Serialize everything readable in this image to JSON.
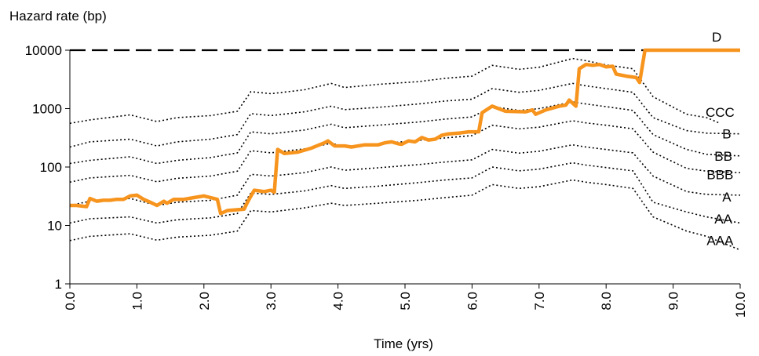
{
  "chart_data": {
    "type": "line",
    "title": "",
    "ylabel": "Hazard rate (bp)",
    "xlabel": "Time (yrs)",
    "yscale": "log",
    "ylim": [
      1,
      10000
    ],
    "xlim": [
      0,
      10
    ],
    "yticks": [
      {
        "value": 1,
        "label": "1"
      },
      {
        "value": 10,
        "label": "10"
      },
      {
        "value": 100,
        "label": "100"
      },
      {
        "value": 1000,
        "label": "1000"
      },
      {
        "value": 10000,
        "label": "10000"
      }
    ],
    "xticks": [
      {
        "value": 0,
        "label": "0.0"
      },
      {
        "value": 1,
        "label": "1.0"
      },
      {
        "value": 2,
        "label": "2.0"
      },
      {
        "value": 3,
        "label": "3.0"
      },
      {
        "value": 4,
        "label": "4.0"
      },
      {
        "value": 5,
        "label": "5.0"
      },
      {
        "value": 6,
        "label": "6.0"
      },
      {
        "value": 7,
        "label": "7.0"
      },
      {
        "value": 8,
        "label": "8.0"
      },
      {
        "value": 9,
        "label": "9.0"
      },
      {
        "value": 10,
        "label": "10.0"
      }
    ],
    "grid": false,
    "colors": {
      "highlight": "#f7941d",
      "rating": "#000000",
      "default_line": "#000000"
    },
    "default_line": {
      "name": "D",
      "value": 10000,
      "style": "dashed"
    },
    "rating_series": [
      {
        "name": "CCC",
        "points": [
          [
            0.0,
            560
          ],
          [
            0.3,
            640
          ],
          [
            0.9,
            780
          ],
          [
            1.3,
            600
          ],
          [
            1.6,
            700
          ],
          [
            2.1,
            760
          ],
          [
            2.5,
            900
          ],
          [
            2.7,
            1950
          ],
          [
            3.0,
            1800
          ],
          [
            3.5,
            2100
          ],
          [
            3.9,
            2700
          ],
          [
            4.1,
            2300
          ],
          [
            4.6,
            2600
          ],
          [
            5.2,
            2900
          ],
          [
            5.6,
            3300
          ],
          [
            6.0,
            3600
          ],
          [
            6.3,
            5500
          ],
          [
            6.7,
            4700
          ],
          [
            7.0,
            5100
          ],
          [
            7.5,
            7200
          ],
          [
            7.7,
            6600
          ],
          [
            8.0,
            5600
          ],
          [
            8.4,
            4800
          ],
          [
            8.7,
            1600
          ],
          [
            9.2,
            800
          ],
          [
            9.5,
            700
          ],
          [
            9.7,
            560
          ]
        ]
      },
      {
        "name": "B",
        "points": [
          [
            0.0,
            220
          ],
          [
            0.3,
            270
          ],
          [
            0.9,
            300
          ],
          [
            1.3,
            230
          ],
          [
            1.6,
            270
          ],
          [
            2.1,
            300
          ],
          [
            2.5,
            360
          ],
          [
            2.7,
            820
          ],
          [
            3.0,
            760
          ],
          [
            3.5,
            880
          ],
          [
            3.9,
            1100
          ],
          [
            4.1,
            960
          ],
          [
            4.6,
            1050
          ],
          [
            5.2,
            1200
          ],
          [
            5.6,
            1350
          ],
          [
            6.0,
            1450
          ],
          [
            6.3,
            2200
          ],
          [
            6.7,
            1900
          ],
          [
            7.0,
            2050
          ],
          [
            7.5,
            2700
          ],
          [
            7.7,
            2450
          ],
          [
            8.0,
            2200
          ],
          [
            8.4,
            1900
          ],
          [
            8.7,
            700
          ],
          [
            9.2,
            420
          ],
          [
            9.5,
            380
          ],
          [
            10.0,
            370
          ]
        ]
      },
      {
        "name": "BB",
        "points": [
          [
            0.0,
            115
          ],
          [
            0.3,
            130
          ],
          [
            0.9,
            150
          ],
          [
            1.3,
            115
          ],
          [
            1.6,
            130
          ],
          [
            2.1,
            145
          ],
          [
            2.5,
            175
          ],
          [
            2.7,
            400
          ],
          [
            3.0,
            370
          ],
          [
            3.5,
            430
          ],
          [
            3.9,
            540
          ],
          [
            4.1,
            470
          ],
          [
            4.6,
            520
          ],
          [
            5.2,
            590
          ],
          [
            5.6,
            660
          ],
          [
            6.0,
            720
          ],
          [
            6.3,
            1080
          ],
          [
            6.7,
            930
          ],
          [
            7.0,
            1000
          ],
          [
            7.5,
            1300
          ],
          [
            7.7,
            1200
          ],
          [
            8.0,
            1080
          ],
          [
            8.4,
            930
          ],
          [
            8.7,
            360
          ],
          [
            9.2,
            200
          ],
          [
            9.5,
            165
          ],
          [
            10.0,
            155
          ]
        ]
      },
      {
        "name": "BBB",
        "points": [
          [
            0.0,
            55
          ],
          [
            0.3,
            65
          ],
          [
            0.9,
            72
          ],
          [
            1.3,
            56
          ],
          [
            1.6,
            64
          ],
          [
            2.1,
            70
          ],
          [
            2.5,
            85
          ],
          [
            2.7,
            190
          ],
          [
            3.0,
            175
          ],
          [
            3.5,
            205
          ],
          [
            3.9,
            255
          ],
          [
            4.1,
            225
          ],
          [
            4.6,
            250
          ],
          [
            5.2,
            285
          ],
          [
            5.6,
            315
          ],
          [
            6.0,
            345
          ],
          [
            6.3,
            520
          ],
          [
            6.7,
            450
          ],
          [
            7.0,
            480
          ],
          [
            7.5,
            620
          ],
          [
            7.7,
            570
          ],
          [
            8.0,
            520
          ],
          [
            8.4,
            450
          ],
          [
            8.7,
            180
          ],
          [
            9.2,
            95
          ],
          [
            9.5,
            85
          ],
          [
            10.0,
            80
          ]
        ]
      },
      {
        "name": "A",
        "points": [
          [
            0.0,
            22
          ],
          [
            0.3,
            26
          ],
          [
            0.9,
            29
          ],
          [
            1.3,
            22
          ],
          [
            1.6,
            25
          ],
          [
            2.1,
            27
          ],
          [
            2.5,
            33
          ],
          [
            2.7,
            75
          ],
          [
            3.0,
            70
          ],
          [
            3.5,
            80
          ],
          [
            3.9,
            100
          ],
          [
            4.1,
            88
          ],
          [
            4.6,
            97
          ],
          [
            5.2,
            110
          ],
          [
            5.6,
            122
          ],
          [
            6.0,
            133
          ],
          [
            6.3,
            200
          ],
          [
            6.7,
            173
          ],
          [
            7.0,
            186
          ],
          [
            7.5,
            240
          ],
          [
            7.7,
            220
          ],
          [
            8.0,
            200
          ],
          [
            8.4,
            175
          ],
          [
            8.7,
            70
          ],
          [
            9.2,
            38
          ],
          [
            9.5,
            34
          ],
          [
            10.0,
            33
          ]
        ]
      },
      {
        "name": "AA",
        "points": [
          [
            0.0,
            11
          ],
          [
            0.3,
            13
          ],
          [
            0.9,
            14
          ],
          [
            1.3,
            11
          ],
          [
            1.6,
            12.5
          ],
          [
            2.1,
            13.5
          ],
          [
            2.5,
            16
          ],
          [
            2.7,
            36
          ],
          [
            3.0,
            34
          ],
          [
            3.5,
            39
          ],
          [
            3.9,
            48
          ],
          [
            4.1,
            43
          ],
          [
            4.6,
            47
          ],
          [
            5.2,
            54
          ],
          [
            5.6,
            60
          ],
          [
            6.0,
            65
          ],
          [
            6.3,
            100
          ],
          [
            6.7,
            86
          ],
          [
            7.0,
            92
          ],
          [
            7.5,
            118
          ],
          [
            7.7,
            108
          ],
          [
            8.0,
            98
          ],
          [
            8.4,
            86
          ],
          [
            8.7,
            25
          ],
          [
            9.2,
            17
          ],
          [
            9.5,
            14
          ],
          [
            10.0,
            11
          ]
        ]
      },
      {
        "name": "AAA",
        "points": [
          [
            0.0,
            5.5
          ],
          [
            0.3,
            6.5
          ],
          [
            0.9,
            7.2
          ],
          [
            1.3,
            5.6
          ],
          [
            1.6,
            6.3
          ],
          [
            2.1,
            6.8
          ],
          [
            2.5,
            8
          ],
          [
            2.7,
            18
          ],
          [
            3.0,
            17
          ],
          [
            3.5,
            20
          ],
          [
            3.9,
            24
          ],
          [
            4.1,
            22
          ],
          [
            4.6,
            24
          ],
          [
            5.2,
            27
          ],
          [
            5.6,
            30
          ],
          [
            6.0,
            33
          ],
          [
            6.3,
            50
          ],
          [
            6.7,
            43
          ],
          [
            7.0,
            46
          ],
          [
            7.5,
            60
          ],
          [
            7.7,
            55
          ],
          [
            8.0,
            50
          ],
          [
            8.4,
            43
          ],
          [
            8.7,
            14
          ],
          [
            9.2,
            8
          ],
          [
            9.5,
            6.5
          ],
          [
            10.0,
            3.8
          ]
        ]
      }
    ],
    "series": [
      {
        "name": "",
        "points": [
          [
            0.0,
            22
          ],
          [
            0.1,
            22
          ],
          [
            0.25,
            21
          ],
          [
            0.3,
            29
          ],
          [
            0.4,
            26
          ],
          [
            0.5,
            27
          ],
          [
            0.6,
            27
          ],
          [
            0.7,
            28
          ],
          [
            0.8,
            28
          ],
          [
            0.9,
            32
          ],
          [
            1.0,
            33
          ],
          [
            1.1,
            28
          ],
          [
            1.2,
            25
          ],
          [
            1.3,
            22
          ],
          [
            1.4,
            26
          ],
          [
            1.45,
            24
          ],
          [
            1.55,
            28
          ],
          [
            1.7,
            28
          ],
          [
            1.85,
            30
          ],
          [
            2.0,
            32
          ],
          [
            2.1,
            30
          ],
          [
            2.2,
            28
          ],
          [
            2.25,
            16
          ],
          [
            2.35,
            18
          ],
          [
            2.6,
            19
          ],
          [
            2.65,
            25
          ],
          [
            2.75,
            40
          ],
          [
            2.9,
            38
          ],
          [
            3.0,
            40
          ],
          [
            3.05,
            37
          ],
          [
            3.1,
            200
          ],
          [
            3.2,
            170
          ],
          [
            3.4,
            180
          ],
          [
            3.6,
            210
          ],
          [
            3.8,
            260
          ],
          [
            3.85,
            280
          ],
          [
            3.95,
            230
          ],
          [
            4.1,
            230
          ],
          [
            4.2,
            220
          ],
          [
            4.4,
            240
          ],
          [
            4.6,
            240
          ],
          [
            4.7,
            260
          ],
          [
            4.8,
            270
          ],
          [
            4.9,
            250
          ],
          [
            4.95,
            245
          ],
          [
            5.05,
            280
          ],
          [
            5.15,
            270
          ],
          [
            5.25,
            320
          ],
          [
            5.35,
            290
          ],
          [
            5.45,
            300
          ],
          [
            5.55,
            350
          ],
          [
            5.65,
            370
          ],
          [
            5.8,
            380
          ],
          [
            5.95,
            400
          ],
          [
            6.1,
            400
          ],
          [
            6.15,
            850
          ],
          [
            6.3,
            1100
          ],
          [
            6.5,
            900
          ],
          [
            6.8,
            880
          ],
          [
            6.9,
            950
          ],
          [
            6.95,
            800
          ],
          [
            7.1,
            950
          ],
          [
            7.3,
            1100
          ],
          [
            7.4,
            1150
          ],
          [
            7.45,
            1400
          ],
          [
            7.55,
            1100
          ],
          [
            7.6,
            4800
          ],
          [
            7.7,
            5700
          ],
          [
            7.8,
            5500
          ],
          [
            7.9,
            5700
          ],
          [
            8.0,
            5200
          ],
          [
            8.1,
            5300
          ],
          [
            8.15,
            3900
          ],
          [
            8.3,
            3600
          ],
          [
            8.45,
            3400
          ],
          [
            8.5,
            2800
          ],
          [
            8.58,
            10000
          ],
          [
            10.0,
            10000
          ]
        ]
      }
    ],
    "labels": [
      {
        "text": "D",
        "x": 9.65,
        "y": 17000
      },
      {
        "text": "CCC",
        "x": 9.7,
        "y": 870
      },
      {
        "text": "B",
        "x": 9.8,
        "y": 370
      },
      {
        "text": "BB",
        "x": 9.75,
        "y": 155
      },
      {
        "text": "BBB",
        "x": 9.7,
        "y": 74
      },
      {
        "text": "A",
        "x": 9.8,
        "y": 31
      },
      {
        "text": "AA",
        "x": 9.75,
        "y": 13
      },
      {
        "text": "AAA",
        "x": 9.7,
        "y": 5.6
      }
    ]
  }
}
